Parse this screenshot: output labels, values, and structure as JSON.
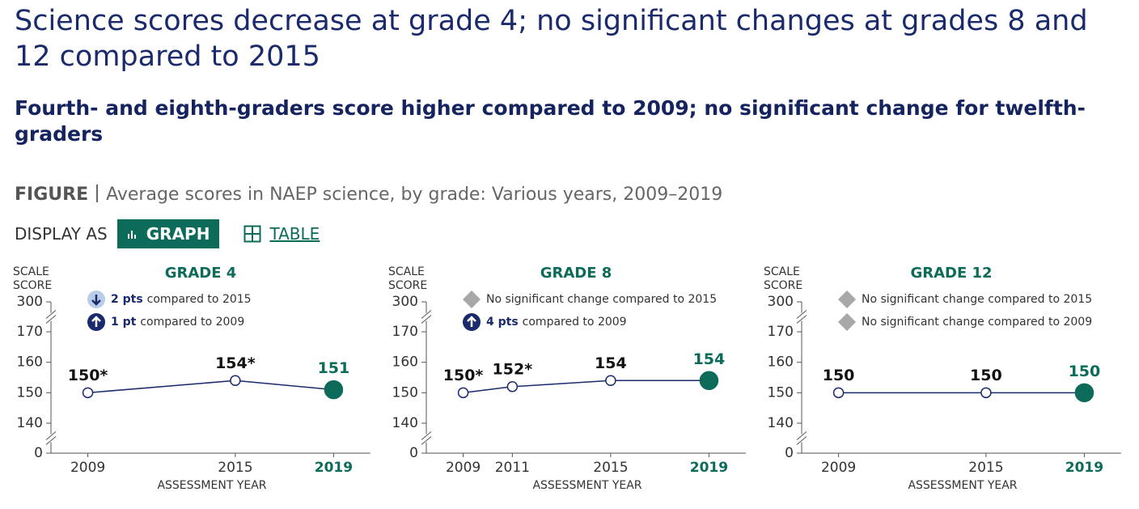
{
  "title": "Science scores decrease at grade 4; no significant changes at grades 8 and 12 compared to 2015",
  "subtitle": "Fourth- and eighth-graders score higher compared to 2009; no significant change for twelfth-graders",
  "figure_label": "FIGURE",
  "figure_caption": "Average scores in NAEP science, by grade: Various years, 2009–2019",
  "display_label": "DISPLAY AS",
  "display_options": [
    "GRAPH",
    "TABLE"
  ],
  "chart_data": [
    {
      "type": "line",
      "title": "GRADE 4",
      "ylabel": [
        "SCALE",
        "SCORE"
      ],
      "xlabel": "ASSESSMENT YEAR",
      "x": [
        2009,
        2015,
        2019
      ],
      "values": [
        150,
        154,
        151
      ],
      "value_labels": [
        "150*",
        "154*",
        "151"
      ],
      "xlim": [
        2007.5,
        2020.5
      ],
      "ylim": [
        0,
        300
      ],
      "yticks": [
        0,
        140,
        150,
        160,
        170,
        300
      ],
      "axis_breaks": [
        [
          0,
          140
        ],
        [
          170,
          300
        ]
      ],
      "color": "#1a2a6c",
      "highlight_color": "#0d6b5a",
      "highlight_last": true,
      "notes": [
        {
          "icon": "down",
          "bold": "2 pts",
          "text": "compared to 2015"
        },
        {
          "icon": "up",
          "bold": "1 pt",
          "text": "compared to 2009"
        }
      ]
    },
    {
      "type": "line",
      "title": "GRADE 8",
      "ylabel": [
        "SCALE",
        "SCORE"
      ],
      "xlabel": "ASSESSMENT YEAR",
      "x": [
        2009,
        2011,
        2015,
        2019
      ],
      "values": [
        150,
        152,
        154,
        154
      ],
      "value_labels": [
        "150*",
        "152*",
        "154",
        "154"
      ],
      "xlim": [
        2007.5,
        2020.5
      ],
      "ylim": [
        0,
        300
      ],
      "yticks": [
        0,
        140,
        150,
        160,
        170,
        300
      ],
      "axis_breaks": [
        [
          0,
          140
        ],
        [
          170,
          300
        ]
      ],
      "color": "#1a2a6c",
      "highlight_color": "#0d6b5a",
      "highlight_last": true,
      "notes": [
        {
          "icon": "none",
          "text": "No significant change compared to 2015"
        },
        {
          "icon": "up",
          "bold": "4 pts",
          "text": "compared to 2009"
        }
      ]
    },
    {
      "type": "line",
      "title": "GRADE 12",
      "ylabel": [
        "SCALE",
        "SCORE"
      ],
      "xlabel": "ASSESSMENT YEAR",
      "x": [
        2009,
        2015,
        2019
      ],
      "values": [
        150,
        150,
        150
      ],
      "xlim": [
        2007.5,
        2020.5
      ],
      "ylim": [
        0,
        300
      ],
      "yticks": [
        0,
        140,
        150,
        160,
        170,
        300
      ],
      "axis_breaks": [
        [
          0,
          140
        ],
        [
          170,
          300
        ]
      ],
      "color": "#1a2a6c",
      "highlight_color": "#0d6b5a",
      "highlight_last": true,
      "notes": [
        {
          "icon": "none",
          "text": "No significant change compared to 2015"
        },
        {
          "icon": "none",
          "text": "No significant change compared to 2009"
        }
      ]
    }
  ]
}
